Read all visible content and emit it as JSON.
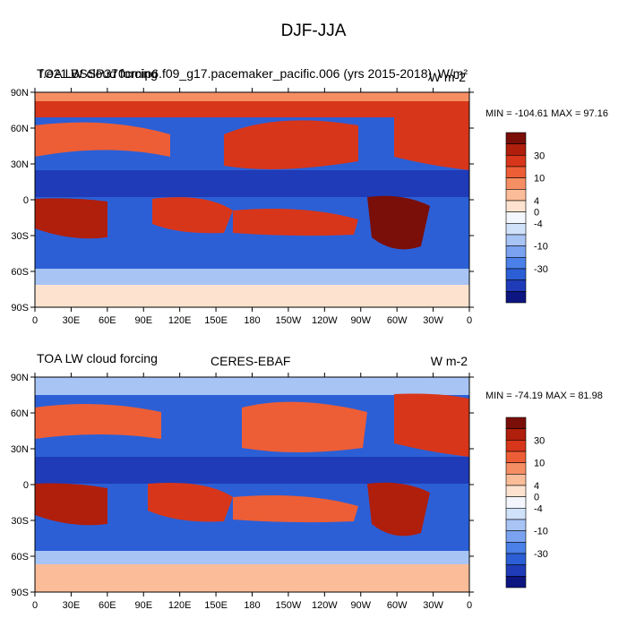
{
  "figure": {
    "title": "DJF-JJA"
  },
  "palette": [
    "#0d1580",
    "#1f3bb8",
    "#2c5fd6",
    "#4a80e8",
    "#7aa2f0",
    "#a8c4f5",
    "#d0e1fa",
    "#f3f6fc",
    "#fde3cf",
    "#fbbc99",
    "#f68e64",
    "#ed5e36",
    "#d8361a",
    "#b01e0c",
    "#7a0e08"
  ],
  "chart_data": [
    {
      "type": "heatmap",
      "name": "model",
      "title_left": "TOA LW cloud forcing",
      "title_left_overprint": "f.e21.BSSP370cmip6.f09_g17.pacemaker_pacific.006 (yrs 2015-2018)",
      "title_right": "W/m²",
      "title_right_overprint": "W m-2",
      "min_max_text": "MIN = -104.61 MAX =  97.16",
      "x_ticks": [
        "0",
        "30E",
        "60E",
        "90E",
        "120E",
        "150E",
        "180",
        "150W",
        "120W",
        "90W",
        "60W",
        "30W",
        "0"
      ],
      "y_ticks": [
        "90N",
        "60N",
        "30N",
        "0",
        "30S",
        "60S",
        "90S"
      ],
      "xlim": [
        0,
        360
      ],
      "ylim": [
        -90,
        90
      ],
      "colorbar_labels": [
        "30",
        "10",
        "4",
        "0",
        "-4",
        "-10",
        "-30"
      ]
    },
    {
      "type": "heatmap",
      "name": "obs",
      "title_left": "TOA LW cloud forcing",
      "title_center": "CERES-EBAF",
      "title_right": "W m-2",
      "min_max_text": "MIN = -74.19 MAX =  81.98",
      "x_ticks": [
        "0",
        "30E",
        "60E",
        "90E",
        "120E",
        "150E",
        "180",
        "150W",
        "120W",
        "90W",
        "60W",
        "30W",
        "0"
      ],
      "y_ticks": [
        "90N",
        "60N",
        "30N",
        "0",
        "30S",
        "60S",
        "90S"
      ],
      "xlim": [
        0,
        360
      ],
      "ylim": [
        -90,
        90
      ],
      "colorbar_labels": [
        "30",
        "10",
        "4",
        "0",
        "-4",
        "-10",
        "-30"
      ]
    }
  ]
}
